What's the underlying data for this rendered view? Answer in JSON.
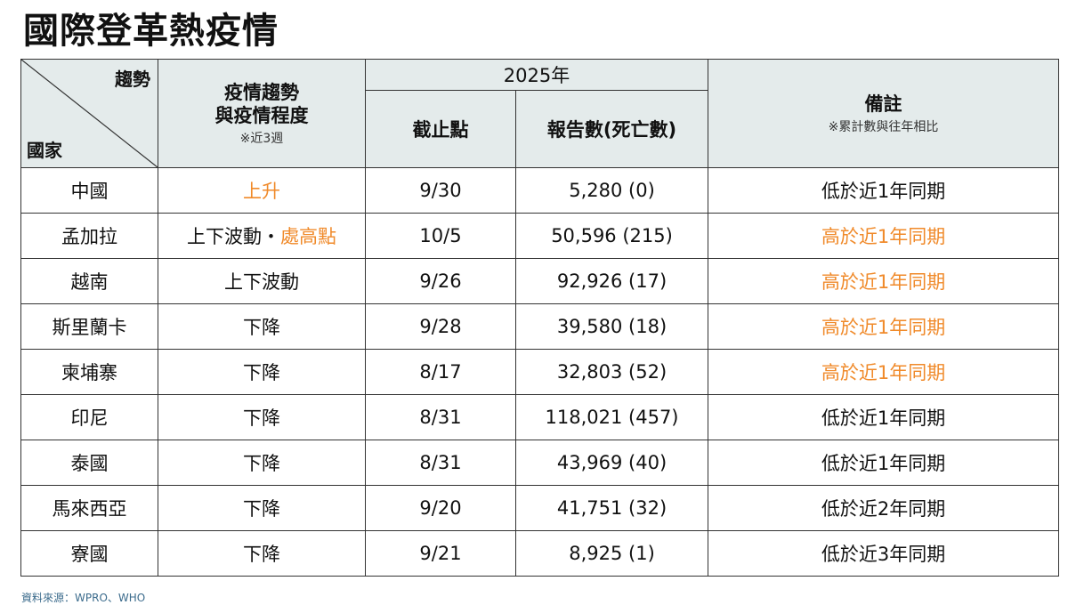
{
  "title": "國際登革熱疫情",
  "header": {
    "trend_label": "趨勢",
    "country_label": "國家",
    "situation_label": "疫情趨勢",
    "situation_label2": "與疫情程度",
    "situation_note": "※近3週",
    "year": "2025年",
    "cutoff_label": "截止點",
    "reports_label": "報告數(死亡數)",
    "remarks_label": "備註",
    "remarks_note": "※累計數與往年相比"
  },
  "rows": [
    {
      "country": "中國",
      "trend": "上升",
      "trend_extra": "",
      "trend_hl": true,
      "cutoff": "9/30",
      "reports": "5,280 (0)",
      "remark": "低於近1年同期",
      "remark_hl": false
    },
    {
      "country": "孟加拉",
      "trend": "上下波動・",
      "trend_extra": "處高點",
      "trend_hl": false,
      "cutoff": "10/5",
      "reports": "50,596 (215)",
      "remark": "高於近1年同期",
      "remark_hl": true
    },
    {
      "country": "越南",
      "trend": "上下波動",
      "trend_extra": "",
      "trend_hl": false,
      "cutoff": "9/26",
      "reports": "92,926 (17)",
      "remark": "高於近1年同期",
      "remark_hl": true
    },
    {
      "country": "斯里蘭卡",
      "trend": "下降",
      "trend_extra": "",
      "trend_hl": false,
      "cutoff": "9/28",
      "reports": "39,580 (18)",
      "remark": "高於近1年同期",
      "remark_hl": true
    },
    {
      "country": "柬埔寨",
      "trend": "下降",
      "trend_extra": "",
      "trend_hl": false,
      "cutoff": "8/17",
      "reports": "32,803 (52)",
      "remark": "高於近1年同期",
      "remark_hl": true
    },
    {
      "country": "印尼",
      "trend": "下降",
      "trend_extra": "",
      "trend_hl": false,
      "cutoff": "8/31",
      "reports": "118,021 (457)",
      "remark": "低於近1年同期",
      "remark_hl": false
    },
    {
      "country": "泰國",
      "trend": "下降",
      "trend_extra": "",
      "trend_hl": false,
      "cutoff": "8/31",
      "reports": "43,969 (40)",
      "remark": "低於近1年同期",
      "remark_hl": false
    },
    {
      "country": "馬來西亞",
      "trend": "下降",
      "trend_extra": "",
      "trend_hl": false,
      "cutoff": "9/20",
      "reports": "41,751 (32)",
      "remark": "低於近2年同期",
      "remark_hl": false
    },
    {
      "country": "寮國",
      "trend": "下降",
      "trend_extra": "",
      "trend_hl": false,
      "cutoff": "9/21",
      "reports": "8,925 (1)",
      "remark": "低於近3年同期",
      "remark_hl": false
    }
  ],
  "source": "資料來源：WPRO、WHO",
  "colors": {
    "highlight": "#f08a2a",
    "header_bg": "#e4ebeb"
  }
}
